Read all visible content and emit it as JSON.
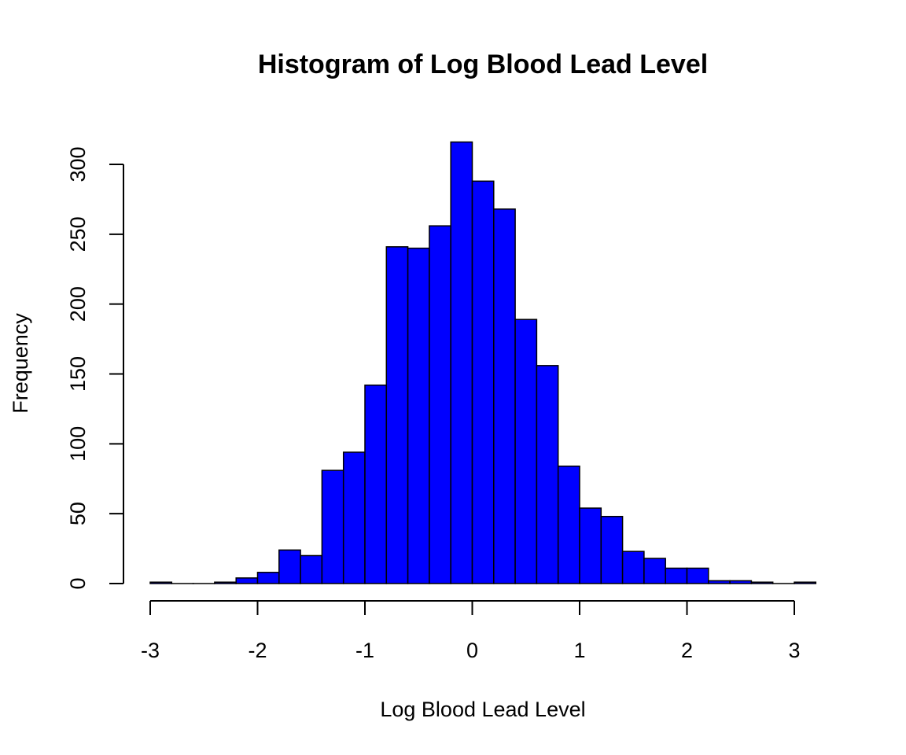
{
  "chart_data": {
    "type": "bar",
    "title": "Histogram of Log Blood Lead Level",
    "xlabel": "Log Blood Lead Level",
    "ylabel": "Frequency",
    "bar_color": "#0000ff",
    "bar_edge_color": "#000000",
    "xlim": [
      -3,
      3.2
    ],
    "ylim": [
      0,
      320
    ],
    "bin_width": 0.2,
    "bin_start": -3.0,
    "values": [
      1,
      0,
      0,
      1,
      4,
      8,
      24,
      20,
      81,
      94,
      142,
      241,
      240,
      256,
      316,
      288,
      268,
      189,
      156,
      84,
      54,
      48,
      23,
      18,
      11,
      11,
      2,
      2,
      1,
      0,
      1
    ],
    "x_ticks": [
      {
        "value": -3,
        "label": "-3"
      },
      {
        "value": -2,
        "label": "-2"
      },
      {
        "value": -1,
        "label": "-1"
      },
      {
        "value": 0,
        "label": "0"
      },
      {
        "value": 1,
        "label": "1"
      },
      {
        "value": 2,
        "label": "2"
      },
      {
        "value": 3,
        "label": "3"
      }
    ],
    "y_ticks": [
      {
        "value": 0,
        "label": "0"
      },
      {
        "value": 50,
        "label": "50"
      },
      {
        "value": 100,
        "label": "100"
      },
      {
        "value": 150,
        "label": "150"
      },
      {
        "value": 200,
        "label": "200"
      },
      {
        "value": 250,
        "label": "250"
      },
      {
        "value": 300,
        "label": "300"
      }
    ],
    "grid": false,
    "legend": "none"
  }
}
